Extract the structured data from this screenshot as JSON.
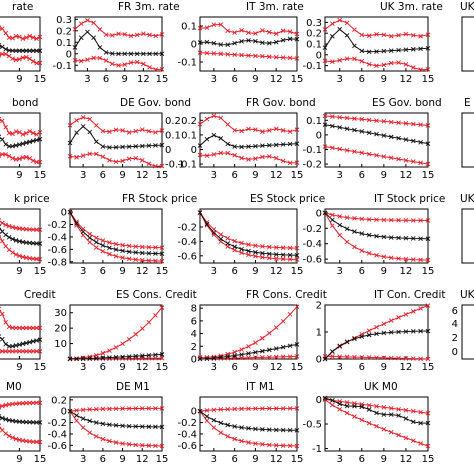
{
  "colors": {
    "band": "#e8202a",
    "mean": "#111111",
    "axis": "#000000",
    "background": "#ffffff"
  },
  "chart_data": [
    {
      "type": "line",
      "title": "rate",
      "x": [
        1,
        15
      ],
      "ylim": [
        -0.15,
        0.25
      ],
      "yticks": [],
      "xticks": [
        "9",
        "15"
      ],
      "profile": "bump",
      "mean_peak": 0.04,
      "mean_end": 0.0,
      "band_up": 0.18,
      "band_lo": -0.08,
      "style_hint": "a"
    },
    {
      "type": "line",
      "title": "FR 3m. rate",
      "x": [
        1,
        15
      ],
      "ylim": [
        -0.15,
        0.32
      ],
      "yticks": [
        "0.3",
        "0.2",
        "0.1",
        "0",
        "-0.1"
      ],
      "xticks": [
        "3",
        "6",
        "9",
        "12",
        "15"
      ],
      "profile": "bump",
      "mean_peak": 0.19,
      "mean_end": 0.0,
      "band_up": 0.3,
      "band_lo": -0.12,
      "style_hint": "b"
    },
    {
      "type": "line",
      "title": "IT 3m. rate",
      "x": [
        1,
        15
      ],
      "ylim": [
        -0.15,
        0.15
      ],
      "yticks": [
        "0.1",
        "0",
        "-0.1"
      ],
      "xticks": [
        "3",
        "6",
        "9",
        "12",
        "15"
      ],
      "profile": "flat",
      "mean_peak": 0.0,
      "mean_end": 0.02,
      "band_up": 0.11,
      "band_lo": -0.08,
      "style_hint": "c"
    },
    {
      "type": "line",
      "title": "UK 3m. rate",
      "x": [
        1,
        15
      ],
      "ylim": [
        -0.15,
        0.35
      ],
      "yticks": [
        "0.3",
        "0.2",
        "0.1",
        "0",
        "-0.1"
      ],
      "xticks": [
        "3",
        "6",
        "9",
        "12",
        "15"
      ],
      "profile": "bump",
      "mean_peak": 0.24,
      "mean_end": 0.06,
      "band_up": 0.33,
      "band_lo": -0.12,
      "style_hint": "d"
    },
    {
      "type": "line",
      "title": "bond",
      "x": [
        1,
        15
      ],
      "ylim": [
        -0.1,
        0.25
      ],
      "yticks": [],
      "xticks": [
        "9",
        "15"
      ],
      "profile": "bump",
      "mean_peak": 0.1,
      "mean_end": 0.08,
      "band_up": 0.22,
      "band_lo": -0.06,
      "style_hint": "e"
    },
    {
      "type": "line",
      "title": "DE Gov. bond",
      "x": [
        1,
        15
      ],
      "ylim": [
        -0.12,
        0.25
      ],
      "yticks": [
        "0.2",
        "0.1",
        "0",
        "-0.1"
      ],
      "xticks": [
        "3",
        "6",
        "9",
        "12",
        "15"
      ],
      "profile": "bump",
      "mean_peak": 0.16,
      "mean_end": 0.03,
      "band_up": 0.23,
      "band_lo": -0.1,
      "style_hint": "f"
    },
    {
      "type": "line",
      "title": "FR Gov. bond",
      "x": [
        1,
        15
      ],
      "ylim": [
        -0.12,
        0.25
      ],
      "yticks": [
        "0.2",
        "0.1",
        "0",
        "-0.1"
      ],
      "xticks": [
        "3",
        "6",
        "9",
        "12",
        "15"
      ],
      "profile": "bump",
      "mean_peak": 0.1,
      "mean_end": 0.04,
      "band_up": 0.24,
      "band_lo": -0.08,
      "style_hint": "g"
    },
    {
      "type": "line",
      "title": "ES Gov. bond",
      "x": [
        1,
        15
      ],
      "ylim": [
        -0.22,
        0.15
      ],
      "yticks": [
        "0.1",
        "0",
        "-0.1",
        "-0.2"
      ],
      "xticks": [
        "3",
        "6",
        "9",
        "12",
        "15"
      ],
      "profile": "decay",
      "mean_peak": 0.07,
      "mean_end": -0.06,
      "band_up": 0.13,
      "band_lo": -0.2,
      "style_hint": "h"
    },
    {
      "type": "line",
      "title": "k price",
      "x": [
        1,
        15
      ],
      "ylim": [
        -0.8,
        0.05
      ],
      "yticks": [],
      "xticks": [
        "9",
        "15"
      ],
      "profile": "fall",
      "mean_peak": 0.0,
      "mean_end": -0.5,
      "band_up": -0.28,
      "band_lo": -0.75,
      "style_hint": "i"
    },
    {
      "type": "line",
      "title": "FR Stock price",
      "x": [
        1,
        15
      ],
      "ylim": [
        -0.82,
        0.05
      ],
      "yticks": [
        "0",
        "-0.2",
        "-0.4",
        "-0.6",
        "-0.8"
      ],
      "xticks": [
        "3",
        "6",
        "9",
        "12",
        "15"
      ],
      "profile": "fall",
      "mean_peak": 0.0,
      "mean_end": -0.68,
      "band_up": -0.58,
      "band_lo": -0.8,
      "style_hint": "j"
    },
    {
      "type": "line",
      "title": "ES  Stock price",
      "x": [
        1,
        15
      ],
      "ylim": [
        -0.7,
        0.05
      ],
      "yticks": [
        "-0.2",
        "-0.4",
        "-0.6"
      ],
      "xticks": [
        "3",
        "6",
        "9",
        "12",
        "15"
      ],
      "profile": "fall",
      "mean_peak": 0.0,
      "mean_end": -0.6,
      "band_up": -0.5,
      "band_lo": -0.66,
      "style_hint": "k"
    },
    {
      "type": "line",
      "title": "IT Stock price",
      "x": [
        1,
        15
      ],
      "ylim": [
        -0.65,
        0.05
      ],
      "yticks": [
        "0",
        "-0.2",
        "-0.4",
        "-0.6"
      ],
      "xticks": [
        "3",
        "6",
        "9",
        "12",
        "15"
      ],
      "profile": "fall",
      "mean_peak": 0.0,
      "mean_end": -0.34,
      "band_up": -0.1,
      "band_lo": -0.62,
      "style_hint": "l"
    },
    {
      "type": "line",
      "title": "Credit",
      "x": [
        1,
        15
      ],
      "ylim": [
        -2,
        12
      ],
      "yticks": [],
      "xticks": [
        "9",
        "15"
      ],
      "profile": "bump",
      "mean_peak": 4,
      "mean_end": 3,
      "band_up": 11,
      "band_lo": 0,
      "style_hint": "m"
    },
    {
      "type": "line",
      "title": "ES Cons. Credit",
      "x": [
        1,
        15
      ],
      "ylim": [
        0,
        35
      ],
      "yticks": [
        "30",
        "20",
        "10"
      ],
      "xticks": [
        "3",
        "6",
        "9",
        "12",
        "15"
      ],
      "profile": "rise",
      "mean_peak": 0,
      "mean_end": 3,
      "band_up": 33,
      "band_lo": 0.5,
      "style_hint": "n"
    },
    {
      "type": "line",
      "title": "FR Cons. Credit",
      "x": [
        1,
        15
      ],
      "ylim": [
        0,
        8.5
      ],
      "yticks": [
        "8",
        "6",
        "4",
        "2",
        "0"
      ],
      "xticks": [
        "3",
        "6",
        "9",
        "12",
        "15"
      ],
      "profile": "rise",
      "mean_peak": 0,
      "mean_end": 2.3,
      "band_up": 8,
      "band_lo": 0.4,
      "style_hint": "o"
    },
    {
      "type": "line",
      "title": "IT Con. Credit",
      "x": [
        1,
        15
      ],
      "ylim": [
        0,
        2
      ],
      "yticks": [
        "2",
        "1",
        "0"
      ],
      "xticks": [
        "3",
        "6",
        "9",
        "12",
        "15"
      ],
      "profile": "rise2",
      "mean_peak": 0.8,
      "mean_end": 1.05,
      "band_up": 1.98,
      "band_lo": 0.1,
      "style_hint": "p"
    },
    {
      "type": "line",
      "title": "M0",
      "x": [
        1,
        15
      ],
      "ylim": [
        -0.7,
        0.25
      ],
      "yticks": [],
      "xticks": [
        "9",
        "15"
      ],
      "profile": "fall",
      "mean_peak": 0.0,
      "mean_end": -0.2,
      "band_up": 0.15,
      "band_lo": -0.55,
      "style_hint": "q"
    },
    {
      "type": "line",
      "title": "DE M1",
      "x": [
        1,
        15
      ],
      "ylim": [
        -0.7,
        0.25
      ],
      "yticks": [
        "0.2",
        "0",
        "-0.2",
        "-0.4",
        "-0.6"
      ],
      "xticks": [
        "3",
        "6",
        "9",
        "12",
        "15"
      ],
      "profile": "fall",
      "mean_peak": 0.0,
      "mean_end": -0.28,
      "band_up": 0.05,
      "band_lo": -0.62,
      "style_hint": "r"
    },
    {
      "type": "line",
      "title": "IT M1",
      "x": [
        1,
        15
      ],
      "ylim": [
        -0.7,
        0.25
      ],
      "yticks": [
        "0",
        "-0.2",
        "-0.4",
        "-0.6"
      ],
      "xticks": [
        "3",
        "6",
        "9",
        "12",
        "15"
      ],
      "profile": "fall",
      "mean_peak": 0.0,
      "mean_end": -0.34,
      "band_up": 0.05,
      "band_lo": -0.62,
      "style_hint": "s"
    },
    {
      "type": "line",
      "title": "UK M0",
      "x": [
        1,
        15
      ],
      "ylim": [
        -1.05,
        0.05
      ],
      "yticks": [
        "0",
        "-0.5",
        "-1"
      ],
      "xticks": [
        "3",
        "6",
        "9",
        "12",
        "15"
      ],
      "profile": "down",
      "mean_peak": 0.0,
      "mean_end": -0.5,
      "band_up": -0.35,
      "band_lo": -0.95,
      "style_hint": "t"
    }
  ],
  "partial_panels": [
    {
      "title": "UK",
      "yticks": [],
      "xticks": []
    },
    {
      "title": "E",
      "yticks": [],
      "xticks": []
    },
    {
      "title": "UK",
      "yticks": [],
      "xticks": []
    },
    {
      "title": "UK",
      "yticks": [
        "6",
        "4",
        "2",
        "0"
      ],
      "xticks": []
    }
  ]
}
